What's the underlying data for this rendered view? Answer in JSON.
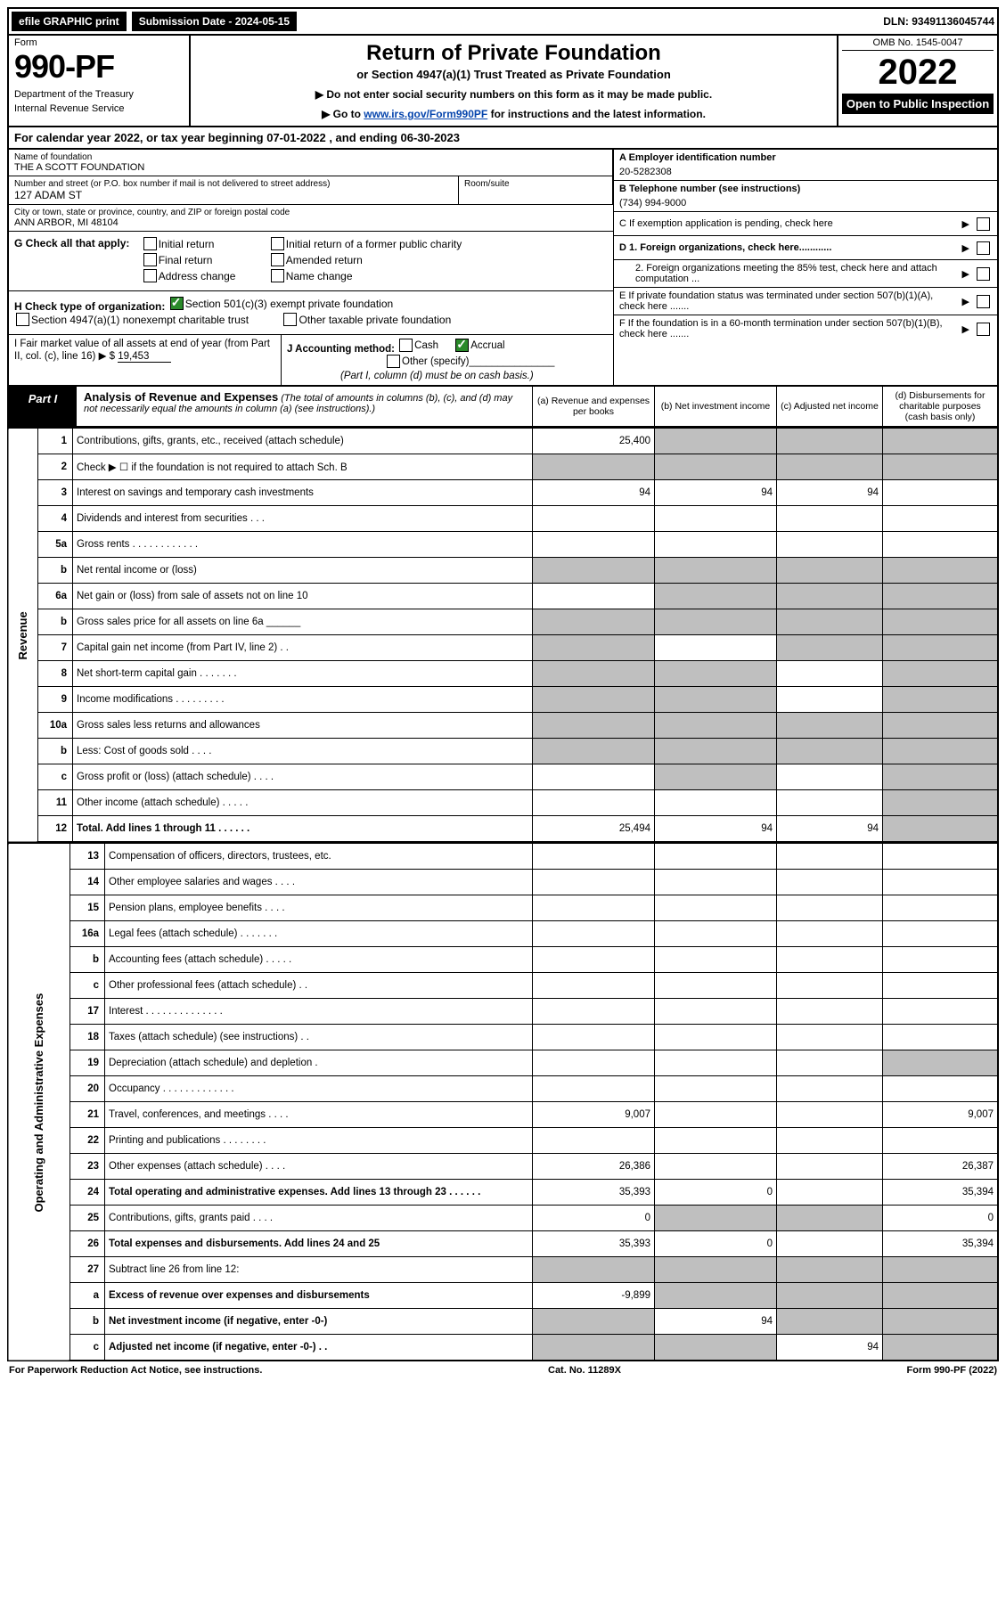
{
  "topbar": {
    "efile": "efile GRAPHIC print",
    "submission_label": "Submission Date - 2024-05-15",
    "dln": "DLN: 93491136045744"
  },
  "header": {
    "form_word": "Form",
    "form_no": "990-PF",
    "dept1": "Department of the Treasury",
    "dept2": "Internal Revenue Service",
    "title": "Return of Private Foundation",
    "subtitle": "or Section 4947(a)(1) Trust Treated as Private Foundation",
    "note1": "▶ Do not enter social security numbers on this form as it may be made public.",
    "note2_pre": "▶ Go to ",
    "note2_link": "www.irs.gov/Form990PF",
    "note2_post": " for instructions and the latest information.",
    "omb": "OMB No. 1545-0047",
    "year": "2022",
    "open": "Open to Public Inspection"
  },
  "calendar": "For calendar year 2022, or tax year beginning 07-01-2022             , and ending 06-30-2023",
  "entity": {
    "name_label": "Name of foundation",
    "name": "THE A SCOTT FOUNDATION",
    "addr_label": "Number and street (or P.O. box number if mail is not delivered to street address)",
    "addr": "127 ADAM ST",
    "room_label": "Room/suite",
    "city_label": "City or town, state or province, country, and ZIP or foreign postal code",
    "city": "ANN ARBOR, MI  48104",
    "ein_label": "A Employer identification number",
    "ein": "20-5282308",
    "tel_label": "B Telephone number (see instructions)",
    "tel": "(734) 994-9000",
    "c_label": "C If exemption application is pending, check here",
    "d1": "D 1. Foreign organizations, check here............",
    "d2": "2. Foreign organizations meeting the 85% test, check here and attach computation ...",
    "e": "E  If private foundation status was terminated under section 507(b)(1)(A), check here .......",
    "f": "F  If the foundation is in a 60-month termination under section 507(b)(1)(B), check here ......."
  },
  "g": {
    "label": "G Check all that apply:",
    "opts": [
      "Initial return",
      "Final return",
      "Address change",
      "Initial return of a former public charity",
      "Amended return",
      "Name change"
    ]
  },
  "h": {
    "label": "H Check type of organization:",
    "opt1": "Section 501(c)(3) exempt private foundation",
    "opt2": "Section 4947(a)(1) nonexempt charitable trust",
    "opt3": "Other taxable private foundation"
  },
  "i": {
    "label": "I Fair market value of all assets at end of year (from Part II, col. (c), line 16) ▶ $",
    "value": "19,453"
  },
  "j": {
    "label": "J Accounting method:",
    "cash": "Cash",
    "accrual": "Accrual",
    "other": "Other (specify)",
    "note": "(Part I, column (d) must be on cash basis.)"
  },
  "part1": {
    "label": "Part I",
    "title": "Analysis of Revenue and Expenses",
    "note": "(The total of amounts in columns (b), (c), and (d) may not necessarily equal the amounts in column (a) (see instructions).)",
    "col_a": "(a)  Revenue and expenses per books",
    "col_b": "(b)  Net investment income",
    "col_c": "(c)  Adjusted net income",
    "col_d": "(d)  Disbursements for charitable purposes (cash basis only)"
  },
  "side": {
    "revenue": "Revenue",
    "opex": "Operating and Administrative Expenses"
  },
  "lines": [
    {
      "n": "1",
      "d": "Contributions, gifts, grants, etc., received (attach schedule)",
      "a": "25,400",
      "bgrey": true,
      "cgrey": true,
      "dgrey": true
    },
    {
      "n": "2",
      "d": "Check ▶ ☐ if the foundation is not required to attach Sch. B",
      "agrey": true,
      "bgrey": true,
      "cgrey": true,
      "dgrey": true,
      "bold": false
    },
    {
      "n": "3",
      "d": "Interest on savings and temporary cash investments",
      "a": "94",
      "b": "94",
      "c": "94"
    },
    {
      "n": "4",
      "d": "Dividends and interest from securities  . . .",
      "a": "",
      "b": "",
      "c": ""
    },
    {
      "n": "5a",
      "d": "Gross rents  . . . . . . . . . . . .",
      "a": "",
      "b": "",
      "c": ""
    },
    {
      "n": "b",
      "d": "Net rental income or (loss)",
      "agrey": true,
      "bgrey": true,
      "cgrey": true,
      "dgrey": true
    },
    {
      "n": "6a",
      "d": "Net gain or (loss) from sale of assets not on line 10",
      "a": "",
      "bgrey": true,
      "cgrey": true,
      "dgrey": true
    },
    {
      "n": "b",
      "d": "Gross sales price for all assets on line 6a ______",
      "agrey": true,
      "bgrey": true,
      "cgrey": true,
      "dgrey": true
    },
    {
      "n": "7",
      "d": "Capital gain net income (from Part IV, line 2)  . .",
      "agrey": true,
      "b": "",
      "cgrey": true,
      "dgrey": true
    },
    {
      "n": "8",
      "d": "Net short-term capital gain  . . . . . . .",
      "agrey": true,
      "bgrey": true,
      "c": "",
      "dgrey": true
    },
    {
      "n": "9",
      "d": "Income modifications  . . . . . . . . .",
      "agrey": true,
      "bgrey": true,
      "c": "",
      "dgrey": true
    },
    {
      "n": "10a",
      "d": "Gross sales less returns and allowances",
      "agrey": true,
      "bgrey": true,
      "cgrey": true,
      "dgrey": true
    },
    {
      "n": "b",
      "d": "Less: Cost of goods sold  . . . .",
      "agrey": true,
      "bgrey": true,
      "cgrey": true,
      "dgrey": true
    },
    {
      "n": "c",
      "d": "Gross profit or (loss) (attach schedule)  . . . .",
      "a": "",
      "bgrey": true,
      "c": "",
      "dgrey": true
    },
    {
      "n": "11",
      "d": "Other income (attach schedule)  . . . . .",
      "a": "",
      "b": "",
      "c": "",
      "dgrey": true
    },
    {
      "n": "12",
      "d": "Total. Add lines 1 through 11  . . . . . .",
      "a": "25,494",
      "b": "94",
      "c": "94",
      "dgrey": true,
      "bold": true
    }
  ],
  "oplines": [
    {
      "n": "13",
      "d": "Compensation of officers, directors, trustees, etc.",
      "a": "",
      "b": "",
      "c": "",
      "dd": ""
    },
    {
      "n": "14",
      "d": "Other employee salaries and wages  . . . .",
      "a": "",
      "b": "",
      "c": "",
      "dd": ""
    },
    {
      "n": "15",
      "d": "Pension plans, employee benefits  . . . .",
      "a": "",
      "b": "",
      "c": "",
      "dd": ""
    },
    {
      "n": "16a",
      "d": "Legal fees (attach schedule)  . . . . . . .",
      "a": "",
      "b": "",
      "c": "",
      "dd": ""
    },
    {
      "n": "b",
      "d": "Accounting fees (attach schedule)  . . . . .",
      "a": "",
      "b": "",
      "c": "",
      "dd": ""
    },
    {
      "n": "c",
      "d": "Other professional fees (attach schedule)  . .",
      "a": "",
      "b": "",
      "c": "",
      "dd": ""
    },
    {
      "n": "17",
      "d": "Interest  . . . . . . . . . . . . . .",
      "a": "",
      "b": "",
      "c": "",
      "dd": ""
    },
    {
      "n": "18",
      "d": "Taxes (attach schedule) (see instructions)  . .",
      "a": "",
      "b": "",
      "c": "",
      "dd": ""
    },
    {
      "n": "19",
      "d": "Depreciation (attach schedule) and depletion  .",
      "a": "",
      "b": "",
      "c": "",
      "ddgrey": true
    },
    {
      "n": "20",
      "d": "Occupancy  . . . . . . . . . . . . .",
      "a": "",
      "b": "",
      "c": "",
      "dd": ""
    },
    {
      "n": "21",
      "d": "Travel, conferences, and meetings  . . . .",
      "a": "9,007",
      "b": "",
      "c": "",
      "dd": "9,007"
    },
    {
      "n": "22",
      "d": "Printing and publications  . . . . . . . .",
      "a": "",
      "b": "",
      "c": "",
      "dd": ""
    },
    {
      "n": "23",
      "d": "Other expenses (attach schedule)  . . . .",
      "a": "26,386",
      "b": "",
      "c": "",
      "dd": "26,387"
    },
    {
      "n": "24",
      "d": "Total operating and administrative expenses. Add lines 13 through 23  . . . . . .",
      "a": "35,393",
      "b": "0",
      "c": "",
      "dd": "35,394",
      "bold": true
    },
    {
      "n": "25",
      "d": "Contributions, gifts, grants paid  . . . .",
      "a": "0",
      "bgrey": true,
      "cgrey": true,
      "dd": "0"
    },
    {
      "n": "26",
      "d": "Total expenses and disbursements. Add lines 24 and 25",
      "a": "35,393",
      "b": "0",
      "c": "",
      "dd": "35,394",
      "bold": true
    },
    {
      "n": "27",
      "d": "Subtract line 26 from line 12:",
      "agrey": true,
      "bgrey": true,
      "cgrey": true,
      "ddgrey": true
    },
    {
      "n": "a",
      "d": "Excess of revenue over expenses and disbursements",
      "a": "-9,899",
      "bgrey": true,
      "cgrey": true,
      "ddgrey": true,
      "bold": true
    },
    {
      "n": "b",
      "d": "Net investment income (if negative, enter -0-)",
      "agrey": true,
      "b": "94",
      "cgrey": true,
      "ddgrey": true,
      "bold": true
    },
    {
      "n": "c",
      "d": "Adjusted net income (if negative, enter -0-)  . .",
      "agrey": true,
      "bgrey": true,
      "c": "94",
      "ddgrey": true,
      "bold": true
    }
  ],
  "footer": {
    "left": "For Paperwork Reduction Act Notice, see instructions.",
    "mid": "Cat. No. 11289X",
    "right": "Form 990-PF (2022)"
  }
}
